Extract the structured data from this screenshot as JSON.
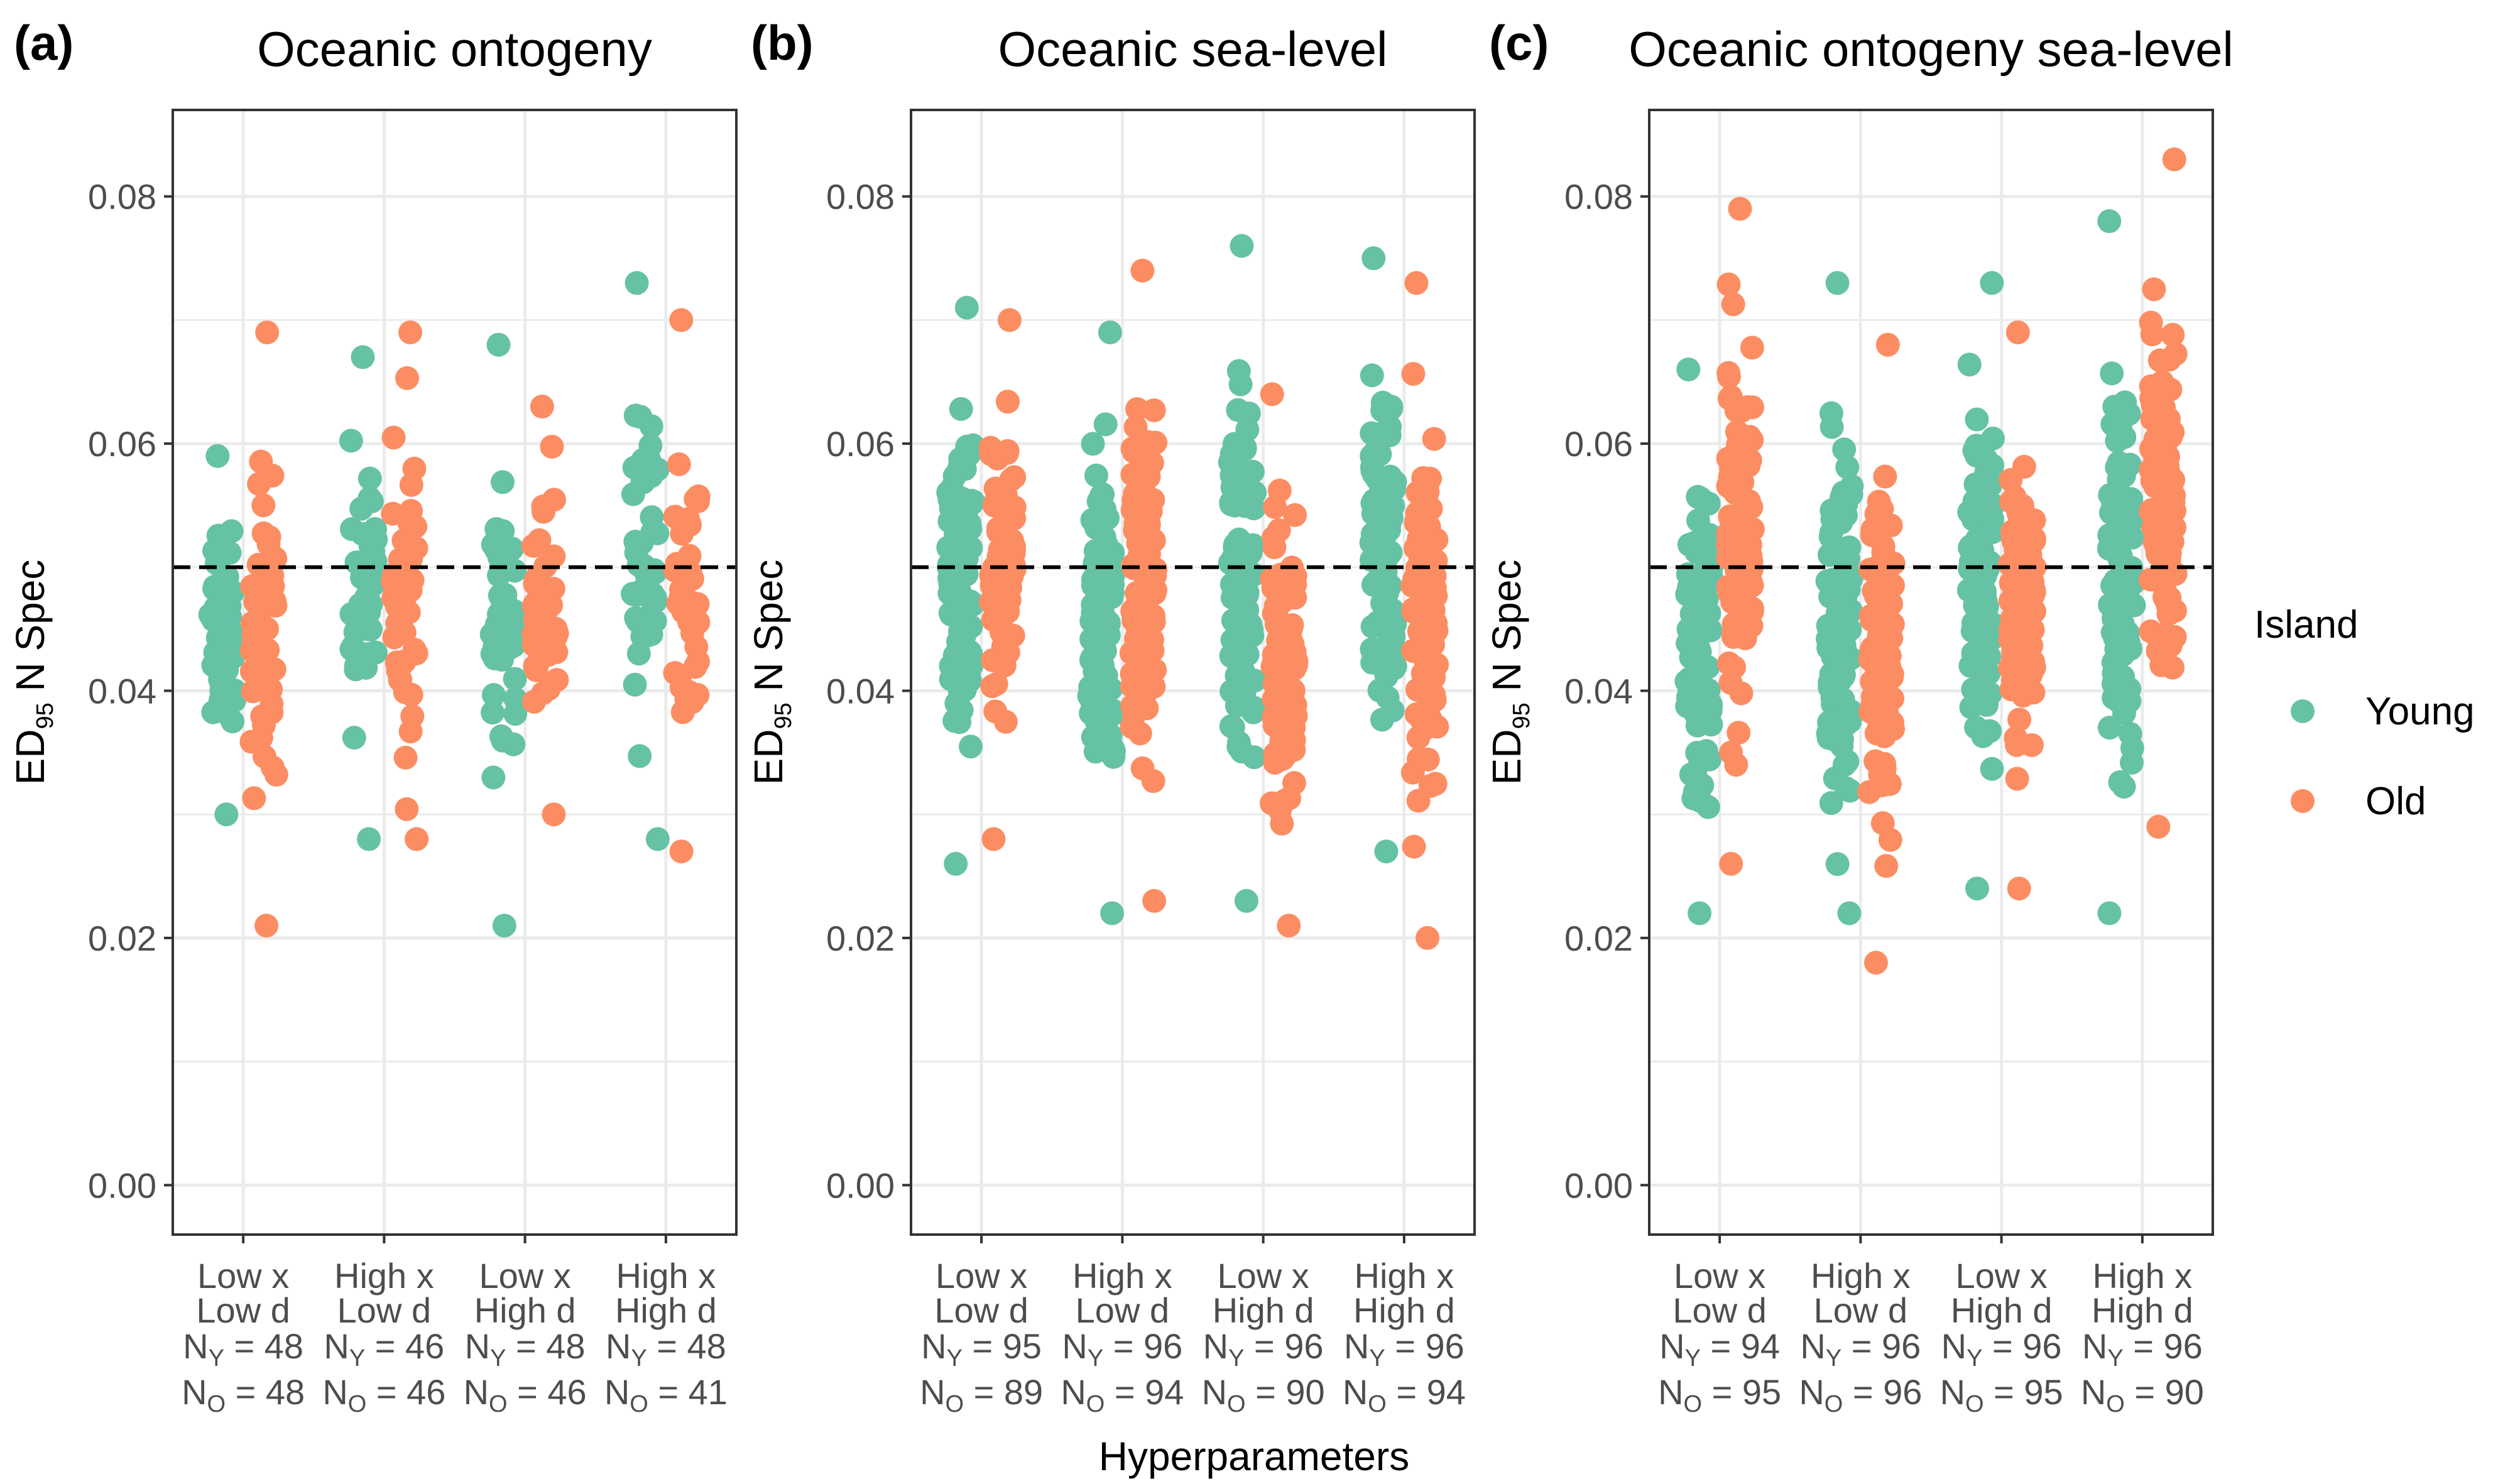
{
  "colors": {
    "young": "#66C2A5",
    "old": "#FC8D62",
    "grid": "#EBEBEB",
    "axis": "#333333",
    "reference": "#000000"
  },
  "x_axis_title": "Hyperparameters",
  "y_axis_title_prefix": "ED",
  "y_axis_title_sub": "95",
  "y_axis_title_suffix": " N Spec",
  "legend": {
    "title": "Island",
    "young": "Young",
    "old": "Old",
    "position": "right"
  },
  "chart_data": [
    {
      "type": "scatter",
      "letter": "(a)",
      "title": "Oceanic ontogeny",
      "ylim": [
        -0.004,
        0.087
      ],
      "yticks": [
        "0.00",
        "0.02",
        "0.04",
        "0.06",
        "0.08"
      ],
      "ytick_values": [
        0,
        0.02,
        0.04,
        0.06,
        0.08
      ],
      "reference_line": 0.05,
      "grid": true,
      "categories": [
        {
          "line1": "Low x",
          "line2": "Low d",
          "n_young": "48",
          "n_old": "48"
        },
        {
          "line1": "High x",
          "line2": "Low d",
          "n_young": "46",
          "n_old": "46"
        },
        {
          "line1": "Low x",
          "line2": "High d",
          "n_young": "48",
          "n_old": "46"
        },
        {
          "line1": "High x",
          "line2": "High d",
          "n_young": "48",
          "n_old": "41"
        }
      ],
      "ranges": [
        {
          "young": [
            0.03,
            0.059
          ],
          "old": [
            0.021,
            0.069
          ]
        },
        {
          "young": [
            0.028,
            0.067
          ],
          "old": [
            0.028,
            0.069
          ]
        },
        {
          "young": [
            0.021,
            0.068
          ],
          "old": [
            0.03,
            0.063
          ]
        },
        {
          "young": [
            0.028,
            0.073
          ],
          "old": [
            0.027,
            0.07
          ]
        }
      ]
    },
    {
      "type": "scatter",
      "letter": "(b)",
      "title": "Oceanic sea-level",
      "ylim": [
        -0.004,
        0.087
      ],
      "yticks": [
        "0.00",
        "0.02",
        "0.04",
        "0.06",
        "0.08"
      ],
      "ytick_values": [
        0,
        0.02,
        0.04,
        0.06,
        0.08
      ],
      "reference_line": 0.05,
      "grid": true,
      "categories": [
        {
          "line1": "Low x",
          "line2": "Low d",
          "n_young": "95",
          "n_old": "89"
        },
        {
          "line1": "High x",
          "line2": "Low d",
          "n_young": "96",
          "n_old": "94"
        },
        {
          "line1": "Low x",
          "line2": "High d",
          "n_young": "96",
          "n_old": "90"
        },
        {
          "line1": "High x",
          "line2": "High d",
          "n_young": "96",
          "n_old": "94"
        }
      ],
      "ranges": [
        {
          "young": [
            0.026,
            0.071
          ],
          "old": [
            0.028,
            0.07
          ]
        },
        {
          "young": [
            0.022,
            0.069
          ],
          "old": [
            0.023,
            0.074
          ]
        },
        {
          "young": [
            0.023,
            0.076
          ],
          "old": [
            0.021,
            0.064
          ]
        },
        {
          "young": [
            0.027,
            0.075
          ],
          "old": [
            0.02,
            0.073
          ]
        }
      ]
    },
    {
      "type": "scatter",
      "letter": "(c)",
      "title": "Oceanic ontogeny sea-level",
      "ylim": [
        -0.004,
        0.087
      ],
      "yticks": [
        "0.00",
        "0.02",
        "0.04",
        "0.06",
        "0.08"
      ],
      "ytick_values": [
        0,
        0.02,
        0.04,
        0.06,
        0.08
      ],
      "reference_line": 0.05,
      "grid": true,
      "categories": [
        {
          "line1": "Low x",
          "line2": "Low d",
          "n_young": "94",
          "n_old": "95"
        },
        {
          "line1": "High x",
          "line2": "Low d",
          "n_young": "96",
          "n_old": "96"
        },
        {
          "line1": "Low x",
          "line2": "High d",
          "n_young": "96",
          "n_old": "95"
        },
        {
          "line1": "High x",
          "line2": "High d",
          "n_young": "96",
          "n_old": "90"
        }
      ],
      "ranges": [
        {
          "young": [
            0.022,
            0.066
          ],
          "old": [
            0.026,
            0.079
          ]
        },
        {
          "young": [
            0.022,
            0.073
          ],
          "old": [
            0.018,
            0.068
          ]
        },
        {
          "young": [
            0.024,
            0.073
          ],
          "old": [
            0.024,
            0.069
          ]
        },
        {
          "young": [
            0.022,
            0.078
          ],
          "old": [
            0.029,
            0.083
          ]
        }
      ]
    }
  ]
}
